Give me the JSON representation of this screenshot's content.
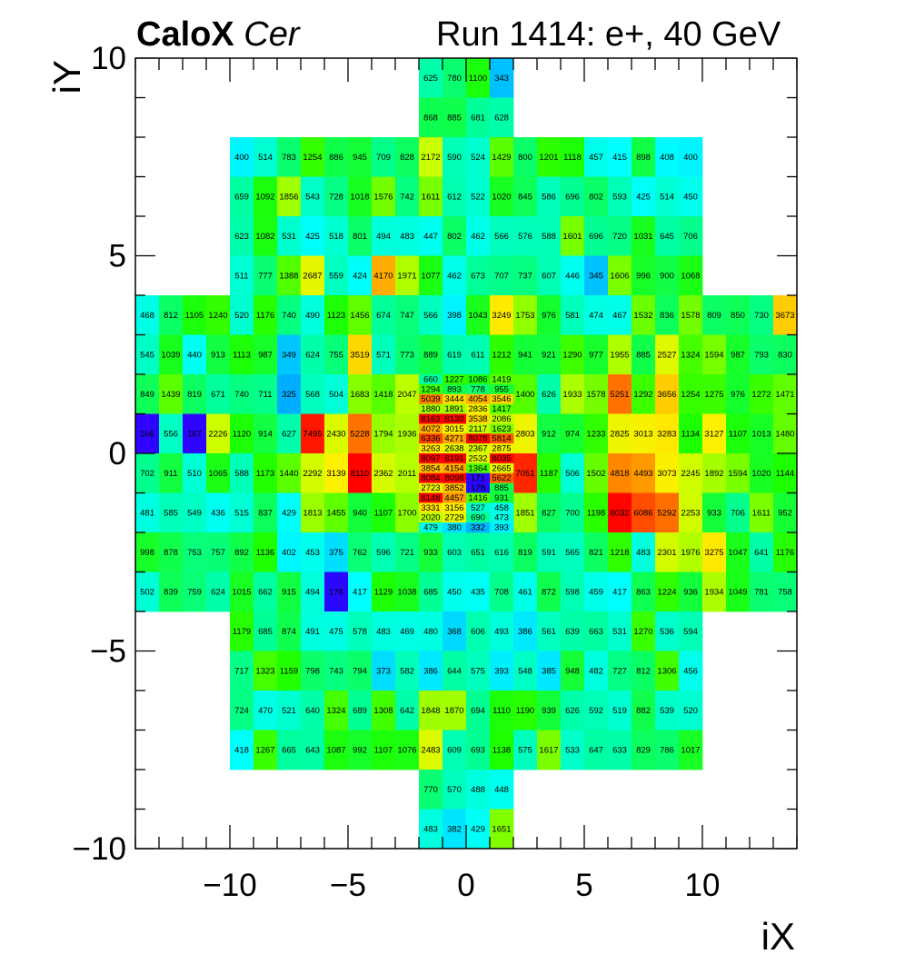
{
  "header": {
    "experiment": "CaloX",
    "channel": "Cer",
    "run_info": "Run 1414: e+, 40 GeV"
  },
  "chart_data": {
    "type": "heatmap",
    "title": "CaloX Cer  Run 1414: e+, 40 GeV",
    "xlabel": "iX",
    "ylabel": "iY",
    "xlim": [
      -14,
      14
    ],
    "ylim": [
      -10,
      10
    ],
    "x_ticks": [
      "−10",
      "−5",
      "0",
      "5",
      "10"
    ],
    "y_ticks": [
      "−10",
      "−5",
      "0",
      "5",
      "10"
    ],
    "colormap": "rainbow",
    "colors": {
      "low": "#3500ff",
      "mid": "#00ffaa",
      "high": "#ff0000"
    },
    "grid": false,
    "rows_top_to_bottom": [
      {
        "iy": 9.5,
        "ix": [
          -2,
          -1,
          0,
          1
        ],
        "values": [
          625,
          780,
          1100,
          343
        ]
      },
      {
        "iy": 8.5,
        "ix": [
          -2,
          -1,
          0,
          1
        ],
        "values": [
          868,
          885,
          681,
          628
        ]
      },
      {
        "iy": 7.5,
        "ix": [
          -10,
          -9,
          -8,
          -7,
          -6,
          -5,
          -4,
          -3,
          -2,
          -1,
          0,
          1,
          2,
          3,
          4,
          5,
          6,
          7,
          8,
          9
        ],
        "values": [
          400,
          514,
          783,
          1254,
          886,
          945,
          709,
          828,
          2172,
          590,
          524,
          1429,
          800,
          1201,
          1118,
          457,
          415,
          898,
          408,
          400
        ]
      },
      {
        "iy": 6.5,
        "ix": [
          -10,
          -9,
          -8,
          -7,
          -6,
          -5,
          -4,
          -3,
          -2,
          -1,
          0,
          1,
          2,
          3,
          4,
          5,
          6,
          7,
          8,
          9
        ],
        "values": [
          659,
          1092,
          1856,
          543,
          728,
          1018,
          1576,
          742,
          1611,
          612,
          522,
          1020,
          845,
          586,
          696,
          802,
          593,
          425,
          514,
          450
        ]
      },
      {
        "iy": 5.5,
        "ix": [
          -10,
          -9,
          -8,
          -7,
          -6,
          -5,
          -4,
          -3,
          -2,
          -1,
          0,
          1,
          2,
          3,
          4,
          5,
          6,
          7,
          8,
          9
        ],
        "values": [
          623,
          1082,
          531,
          425,
          518,
          801,
          494,
          483,
          447,
          802,
          462,
          566,
          576,
          588,
          1601,
          696,
          720,
          1031,
          645,
          706
        ]
      },
      {
        "iy": 4.5,
        "ix": [
          -10,
          -9,
          -8,
          -7,
          -6,
          -5,
          -4,
          -3,
          -2,
          -1,
          0,
          1,
          2,
          3,
          4,
          5,
          6,
          7,
          8,
          9
        ],
        "values": [
          511,
          777,
          1388,
          2687,
          559,
          424,
          4170,
          1971,
          1077,
          462,
          673,
          707,
          737,
          607,
          446,
          345,
          1606,
          996,
          900,
          1068
        ]
      },
      {
        "iy": 3.5,
        "ix": [
          -14,
          -13,
          -12,
          -11,
          -10,
          -9,
          -8,
          -7,
          -6,
          -5,
          -4,
          -3,
          -2,
          -1,
          0,
          1,
          2,
          3,
          4,
          5,
          6,
          7,
          8,
          9,
          10,
          11,
          12,
          13
        ],
        "values": [
          468,
          812,
          1105,
          1240,
          520,
          1176,
          740,
          490,
          1123,
          1456,
          674,
          747,
          566,
          398,
          1043,
          3249,
          1753,
          976,
          581,
          474,
          467,
          1532,
          836,
          1578,
          809,
          850,
          730,
          3673
        ]
      },
      {
        "iy": 2.5,
        "ix": [
          -14,
          -13,
          -12,
          -11,
          -10,
          -9,
          -8,
          -7,
          -6,
          -5,
          -4,
          -3,
          -2,
          -1,
          0,
          1,
          2,
          3,
          4,
          5,
          6,
          7,
          8,
          9,
          10,
          11,
          12,
          13
        ],
        "values": [
          545,
          1039,
          440,
          913,
          1113,
          987,
          349,
          624,
          755,
          3519,
          571,
          773,
          889,
          619,
          611,
          1212,
          941,
          921,
          1290,
          977,
          1955,
          885,
          2527,
          1324,
          1594,
          987,
          793,
          830
        ]
      },
      {
        "iy": 1.5,
        "ix": [
          -14,
          -13,
          -12,
          -11,
          -10,
          -9,
          -8,
          -7,
          -6,
          -5,
          -4,
          -3,
          2,
          3,
          4,
          5,
          6,
          7,
          8,
          9,
          10,
          11,
          12,
          13
        ],
        "values": [
          849,
          1439,
          819,
          671,
          740,
          711,
          325,
          568,
          504,
          1683,
          1418,
          2047,
          1400,
          626,
          1933,
          1578,
          5251,
          1292,
          3656,
          1254,
          1275,
          976,
          1272,
          1471
        ]
      },
      {
        "iy": 0.5,
        "ix": [
          -14,
          -13,
          -12,
          -11,
          -10,
          -9,
          -8,
          -7,
          -6,
          -5,
          -4,
          -3,
          2,
          3,
          4,
          5,
          6,
          7,
          8,
          9,
          10,
          11,
          12,
          13
        ],
        "values": [
          166,
          556,
          167,
          2226,
          1120,
          914,
          627,
          7495,
          2430,
          5228,
          1794,
          1936,
          2803,
          912,
          974,
          1233,
          2825,
          3013,
          3283,
          1134,
          3127,
          1107,
          1013,
          1480
        ]
      },
      {
        "iy": -0.5,
        "ix": [
          -14,
          -13,
          -12,
          -11,
          -10,
          -9,
          -8,
          -7,
          -6,
          -5,
          -4,
          -3,
          2,
          3,
          4,
          5,
          6,
          7,
          8,
          9,
          10,
          11,
          12,
          13
        ],
        "values": [
          702,
          911,
          510,
          1065,
          588,
          1173,
          1440,
          2292,
          3139,
          8110,
          2362,
          2011,
          7051,
          1187,
          506,
          1502,
          4818,
          4493,
          3073,
          2245,
          1892,
          1594,
          1020,
          1144
        ]
      },
      {
        "iy": -1.5,
        "ix": [
          -14,
          -13,
          -12,
          -11,
          -10,
          -9,
          -8,
          -7,
          -6,
          -5,
          -4,
          -3,
          2,
          3,
          4,
          5,
          6,
          7,
          8,
          9,
          10,
          11,
          12,
          13
        ],
        "values": [
          481,
          585,
          549,
          436,
          515,
          837,
          429,
          1813,
          1455,
          940,
          1107,
          1700,
          1851,
          827,
          700,
          1198,
          8032,
          6086,
          5292,
          2253,
          933,
          706,
          1611,
          952
        ]
      },
      {
        "iy": -2.5,
        "ix": [
          -14,
          -13,
          -12,
          -11,
          -10,
          -9,
          -8,
          -7,
          -6,
          -5,
          -4,
          -3,
          -2,
          -1,
          0,
          1,
          2,
          3,
          4,
          5,
          6,
          7,
          8,
          9,
          10,
          11,
          12,
          13
        ],
        "values": [
          998,
          878,
          753,
          757,
          892,
          1136,
          402,
          453,
          375,
          762,
          596,
          721,
          933,
          603,
          651,
          616,
          819,
          591,
          565,
          821,
          1218,
          483,
          2301,
          1976,
          3275,
          1047,
          641,
          1176
        ]
      },
      {
        "iy": -3.5,
        "ix": [
          -14,
          -13,
          -12,
          -11,
          -10,
          -9,
          -8,
          -7,
          -6,
          -5,
          -4,
          -3,
          -2,
          -1,
          0,
          1,
          2,
          3,
          4,
          5,
          6,
          7,
          8,
          9,
          10,
          11,
          12,
          13
        ],
        "values": [
          502,
          839,
          759,
          624,
          1015,
          662,
          915,
          494,
          176,
          417,
          1129,
          1038,
          685,
          450,
          435,
          708,
          461,
          872,
          598,
          459,
          417,
          863,
          1224,
          936,
          1934,
          1049,
          781,
          758
        ]
      },
      {
        "iy": -4.5,
        "ix": [
          -10,
          -9,
          -8,
          -7,
          -6,
          -5,
          -4,
          -3,
          -2,
          -1,
          0,
          1,
          2,
          3,
          4,
          5,
          6,
          7,
          8,
          9
        ],
        "values": [
          1179,
          685,
          874,
          491,
          475,
          578,
          483,
          469,
          480,
          368,
          606,
          493,
          386,
          561,
          639,
          663,
          531,
          1270,
          536,
          594
        ]
      },
      {
        "iy": -5.5,
        "ix": [
          -10,
          -9,
          -8,
          -7,
          -6,
          -5,
          -4,
          -3,
          -2,
          -1,
          0,
          1,
          2,
          3,
          4,
          5,
          6,
          7,
          8,
          9
        ],
        "values": [
          717,
          1323,
          1159,
          798,
          743,
          794,
          373,
          582,
          386,
          644,
          575,
          393,
          548,
          385,
          948,
          482,
          727,
          812,
          1306,
          456
        ]
      },
      {
        "iy": -6.5,
        "ix": [
          -10,
          -9,
          -8,
          -7,
          -6,
          -5,
          -4,
          -3,
          -2,
          -1,
          0,
          1,
          2,
          3,
          4,
          5,
          6,
          7,
          8,
          9
        ],
        "values": [
          724,
          470,
          521,
          640,
          1324,
          689,
          1308,
          642,
          1848,
          1870,
          694,
          1110,
          1190,
          939,
          626,
          592,
          519,
          882,
          539,
          520
        ]
      },
      {
        "iy": -7.5,
        "ix": [
          -10,
          -9,
          -8,
          -7,
          -6,
          -5,
          -4,
          -3,
          -2,
          -1,
          0,
          1,
          2,
          3,
          4,
          5,
          6,
          7,
          8,
          9
        ],
        "values": [
          418,
          1267,
          665,
          643,
          1087,
          992,
          1107,
          1076,
          2483,
          609,
          693,
          1138,
          575,
          1617,
          533,
          647,
          633,
          829,
          786,
          1017
        ]
      },
      {
        "iy": -8.5,
        "ix": [
          -2,
          -1,
          0,
          1
        ],
        "values": [
          770,
          570,
          488,
          448
        ]
      },
      {
        "iy": -9.5,
        "ix": [
          -2,
          -1,
          0,
          1
        ],
        "values": [
          483,
          382,
          429,
          1651
        ]
      }
    ],
    "fine_rows_top_to_bottom": [
      {
        "iy": 1.875,
        "ix": [
          -2,
          -1,
          0,
          1
        ],
        "values": [
          660,
          1227,
          1086,
          1419
        ]
      },
      {
        "iy": 1.625,
        "ix": [
          -2,
          -1,
          0,
          1
        ],
        "values": [
          1294,
          893,
          778,
          955
        ]
      },
      {
        "iy": 1.375,
        "ix": [
          -2,
          -1,
          0,
          1
        ],
        "values": [
          5039,
          3444,
          4054,
          3546
        ]
      },
      {
        "iy": 1.125,
        "ix": [
          -2,
          -1,
          0,
          1
        ],
        "values": [
          1880,
          1891,
          2836,
          1417
        ]
      },
      {
        "iy": 0.875,
        "ix": [
          -2,
          -1,
          0,
          1
        ],
        "values": [
          8163,
          8130,
          3538,
          2086
        ]
      },
      {
        "iy": 0.625,
        "ix": [
          -2,
          -1,
          0,
          1
        ],
        "values": [
          4072,
          3015,
          2117,
          1623
        ]
      },
      {
        "iy": 0.375,
        "ix": [
          -2,
          -1,
          0,
          1
        ],
        "values": [
          6336,
          4271,
          8078,
          5814
        ]
      },
      {
        "iy": 0.125,
        "ix": [
          -2,
          -1,
          0,
          1
        ],
        "values": [
          3263,
          2638,
          2367,
          2875
        ]
      },
      {
        "iy": -0.125,
        "ix": [
          -2,
          -1,
          0,
          1
        ],
        "values": [
          8097,
          8191,
          2532,
          8035
        ]
      },
      {
        "iy": -0.375,
        "ix": [
          -2,
          -1,
          0,
          1
        ],
        "values": [
          3854,
          4154,
          1364,
          2665
        ]
      },
      {
        "iy": -0.625,
        "ix": [
          -2,
          -1,
          0,
          1
        ],
        "values": [
          8084,
          8098,
          171,
          5622
        ]
      },
      {
        "iy": -0.875,
        "ix": [
          -2,
          -1,
          0,
          1
        ],
        "values": [
          2723,
          3852,
          178,
          885
        ]
      },
      {
        "iy": -1.125,
        "ix": [
          -2,
          -1,
          0,
          1
        ],
        "values": [
          8148,
          4457,
          1416,
          931
        ]
      },
      {
        "iy": -1.375,
        "ix": [
          -2,
          -1,
          0,
          1
        ],
        "values": [
          3331,
          3156,
          527,
          458
        ]
      },
      {
        "iy": -1.625,
        "ix": [
          -2,
          -1,
          0,
          1
        ],
        "values": [
          2020,
          2729,
          690,
          473
        ]
      },
      {
        "iy": -1.875,
        "ix": [
          -2,
          -1,
          0,
          1
        ],
        "values": [
          479,
          380,
          332,
          393
        ]
      }
    ]
  }
}
